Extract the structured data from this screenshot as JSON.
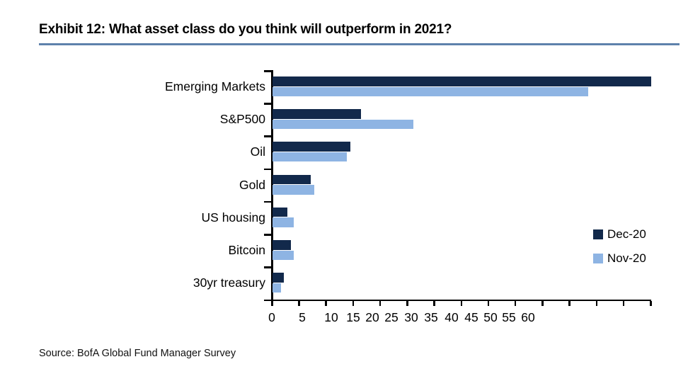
{
  "page": {
    "title": "Exhibit 12: What asset class do you think will outperform in 2021?",
    "source": "Source: BofA Global Fund Manager Survey",
    "accent_underline_color": "#5E81AB",
    "axis_color": "#000000"
  },
  "chart_data": {
    "type": "bar",
    "orientation": "horizontal",
    "title": "Exhibit 12: What asset class do you think will outperform in 2021?",
    "categories": [
      "Emerging Markets",
      "S&P500",
      "Oil",
      "Gold",
      "US housing",
      "Bitcoin",
      "30yr treasury"
    ],
    "series": [
      {
        "name": "Dec-20",
        "color": "#12294B",
        "values": [
          70.0,
          16.3,
          14.4,
          7.0,
          2.7,
          3.4,
          2.1
        ]
      },
      {
        "name": "Nov-20",
        "color": "#8EB4E3",
        "values": [
          58.3,
          26.0,
          13.7,
          7.7,
          3.9,
          3.9,
          1.6
        ]
      }
    ],
    "xlabel": "",
    "ylabel": "",
    "xlim": [
      0,
      70
    ],
    "x_tick_step": 5,
    "x_tick_labels": [
      "0",
      "5",
      "10",
      "15",
      "20",
      "25",
      "30",
      "35",
      "40",
      "45",
      "50",
      "55",
      "60"
    ],
    "grid": false,
    "legend_position": "center-right",
    "source": "Source: BofA Global Fund Manager Survey"
  }
}
